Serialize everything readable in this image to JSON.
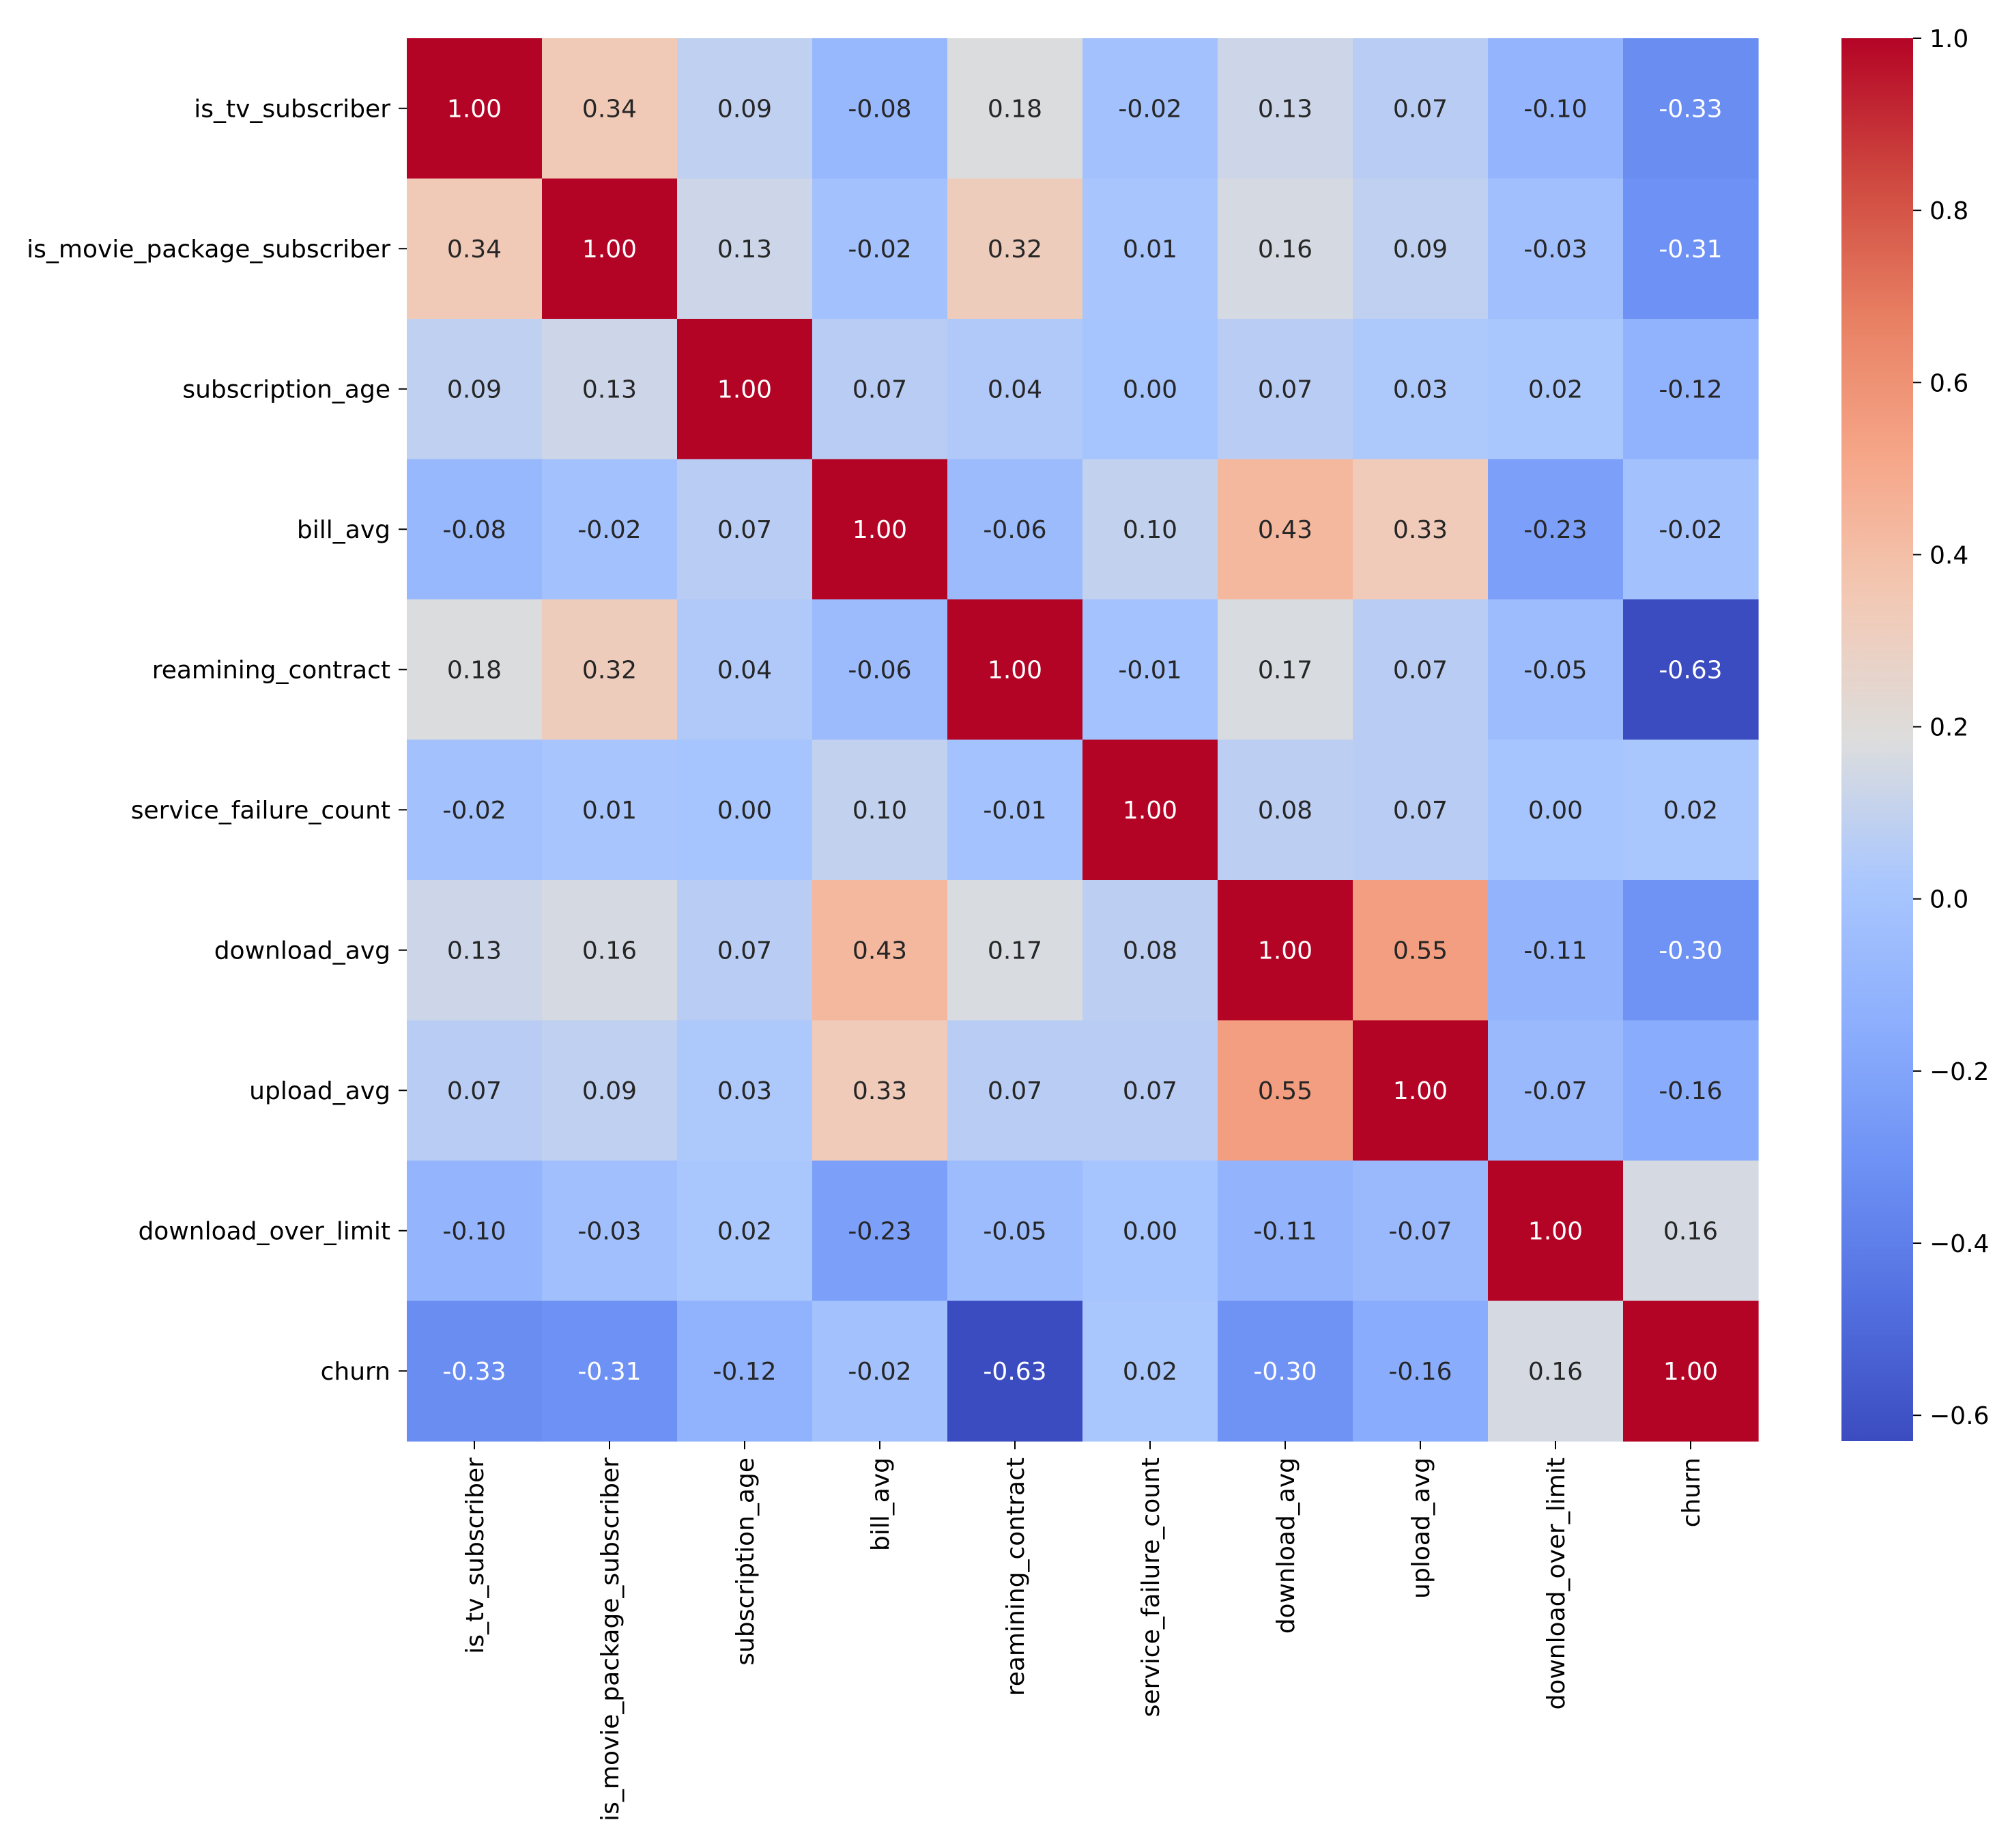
{
  "chart_data": {
    "type": "heatmap",
    "title": "",
    "xlabel": "",
    "ylabel": "",
    "labels": [
      "is_tv_subscriber",
      "is_movie_package_subscriber",
      "subscription_age",
      "bill_avg",
      "reamining_contract",
      "service_failure_count",
      "download_avg",
      "upload_avg",
      "download_over_limit",
      "churn"
    ],
    "values": [
      [
        1.0,
        0.34,
        0.09,
        -0.08,
        0.18,
        -0.02,
        0.13,
        0.07,
        -0.1,
        -0.33
      ],
      [
        0.34,
        1.0,
        0.13,
        -0.02,
        0.32,
        0.01,
        0.16,
        0.09,
        -0.03,
        -0.31
      ],
      [
        0.09,
        0.13,
        1.0,
        0.07,
        0.04,
        0.0,
        0.07,
        0.03,
        0.02,
        -0.12
      ],
      [
        -0.08,
        -0.02,
        0.07,
        1.0,
        -0.06,
        0.1,
        0.43,
        0.33,
        -0.23,
        -0.02
      ],
      [
        0.18,
        0.32,
        0.04,
        -0.06,
        1.0,
        -0.01,
        0.17,
        0.07,
        -0.05,
        -0.63
      ],
      [
        -0.02,
        0.01,
        0.0,
        0.1,
        -0.01,
        1.0,
        0.08,
        0.07,
        0.0,
        0.02
      ],
      [
        0.13,
        0.16,
        0.07,
        0.43,
        0.17,
        0.08,
        1.0,
        0.55,
        -0.11,
        -0.3
      ],
      [
        0.07,
        0.09,
        0.03,
        0.33,
        0.07,
        0.07,
        0.55,
        1.0,
        -0.07,
        -0.16
      ],
      [
        -0.1,
        -0.03,
        0.02,
        -0.23,
        -0.05,
        0.0,
        -0.11,
        -0.07,
        1.0,
        0.16
      ],
      [
        -0.33,
        -0.31,
        -0.12,
        -0.02,
        -0.63,
        0.02,
        -0.3,
        -0.16,
        0.16,
        1.0
      ]
    ],
    "value_format": "2 decimals",
    "colormap": "coolwarm",
    "color_range": [
      -0.63,
      1.0
    ],
    "colorbar": {
      "ticks": [
        1.0,
        0.8,
        0.6,
        0.4,
        0.2,
        0.0,
        -0.2,
        -0.4,
        -0.6
      ],
      "tick_labels": [
        "1.0",
        "0.8",
        "0.6",
        "0.4",
        "0.2",
        "0.0",
        "−0.2",
        "−0.4",
        "−0.6"
      ],
      "placement": "right"
    },
    "grid": false,
    "legend": "none"
  }
}
